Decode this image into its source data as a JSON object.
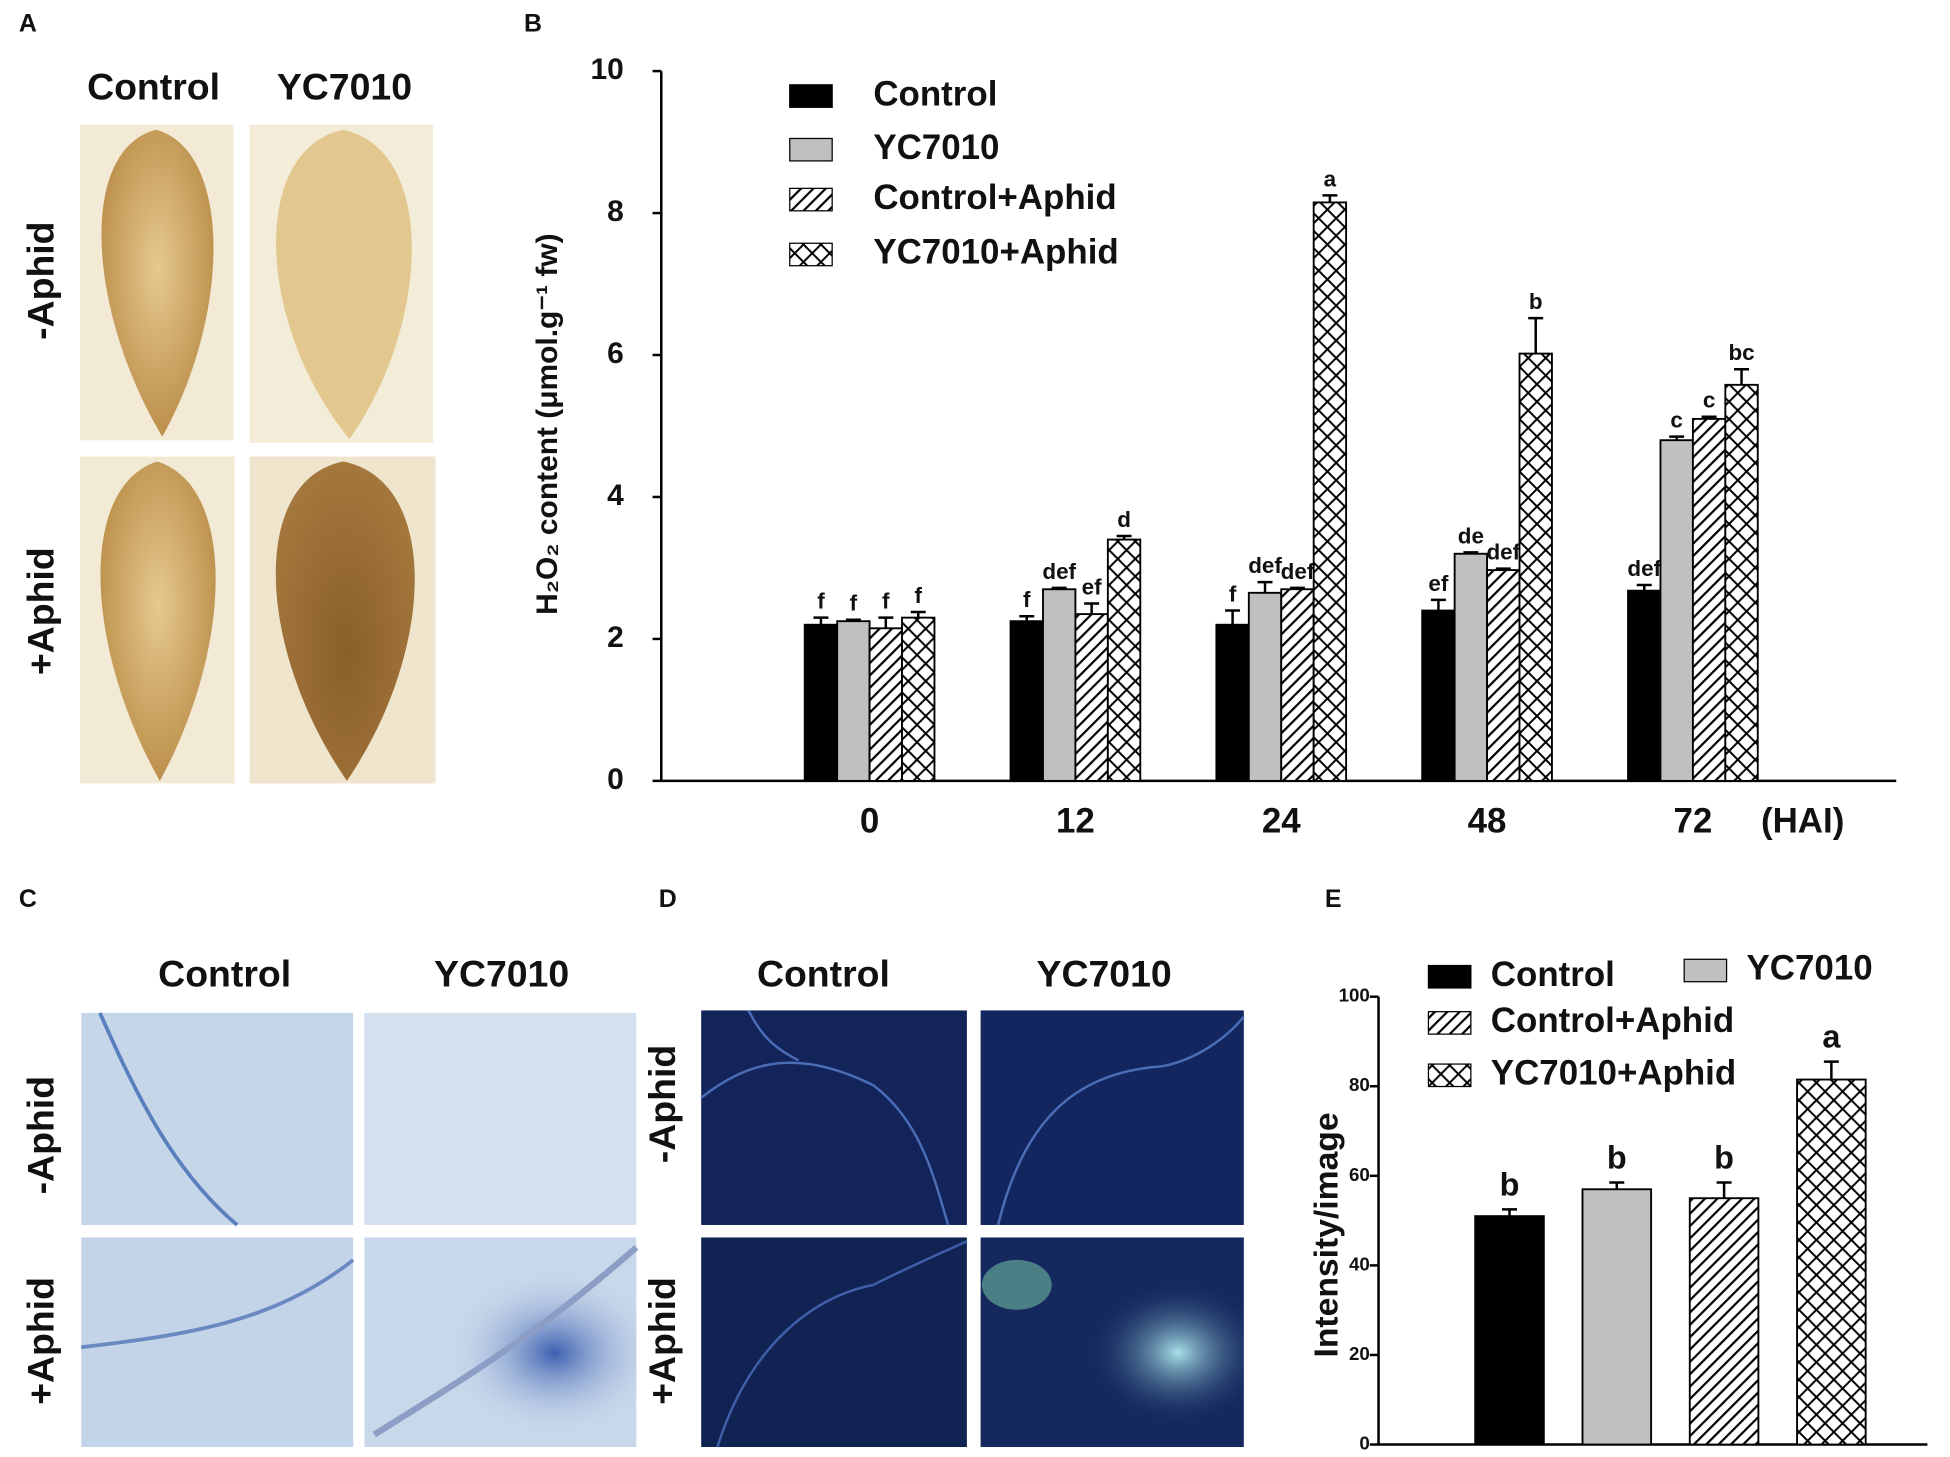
{
  "panels": {
    "A": {
      "label": "A",
      "columns": [
        "Control",
        "YC7010"
      ],
      "rows": [
        "-Aphid",
        "+Aphid"
      ]
    },
    "C": {
      "label": "C",
      "columns": [
        "Control",
        "YC7010"
      ],
      "rows": [
        "-Aphid",
        "+Aphid"
      ]
    },
    "D": {
      "label": "D",
      "columns": [
        "Control",
        "YC7010"
      ],
      "rows": [
        "-Aphid",
        "+Aphid"
      ]
    }
  },
  "chart_data": [
    {
      "type": "bar",
      "panel_label": "B",
      "ylabel": "H₂O₂ content (μmol.g⁻¹ fw)",
      "xlabel": "(HAI)",
      "categories": [
        "0",
        "12",
        "24",
        "48",
        "72"
      ],
      "ylim": [
        0,
        10
      ],
      "yticks": [
        0,
        2,
        4,
        6,
        8,
        10
      ],
      "legend": "upper left",
      "series": [
        {
          "name": "Control",
          "color": "#000000",
          "values": [
            2.2,
            2.25,
            2.2,
            2.4,
            2.68
          ],
          "errors": [
            0.1,
            0.07,
            0.2,
            0.15,
            0.08
          ],
          "significance": [
            "f",
            "f",
            "f",
            "ef",
            "def"
          ]
        },
        {
          "name": "YC7010",
          "color": "#c0c0c0",
          "values": [
            2.25,
            2.7,
            2.65,
            3.2,
            4.8
          ],
          "errors": [
            0.02,
            0.02,
            0.15,
            0.02,
            0.05
          ],
          "significance": [
            "f",
            "def",
            "def",
            "de",
            "c"
          ]
        },
        {
          "name": "Control+Aphid",
          "color": "#000000",
          "hatch": "diagonal",
          "values": [
            2.15,
            2.35,
            2.7,
            2.97,
            5.1
          ],
          "errors": [
            0.15,
            0.15,
            0.02,
            0.02,
            0.03
          ],
          "significance": [
            "f",
            "ef",
            "def",
            "def",
            "c"
          ]
        },
        {
          "name": "YC7010+Aphid",
          "color": "#000000",
          "hatch": "cross",
          "values": [
            2.3,
            3.4,
            8.15,
            6.02,
            5.58
          ],
          "errors": [
            0.08,
            0.05,
            0.1,
            0.5,
            0.22
          ],
          "significance": [
            "f",
            "d",
            "a",
            "b",
            "bc"
          ]
        }
      ]
    },
    {
      "type": "bar",
      "panel_label": "E",
      "ylabel": "Intensity/image",
      "categories": [
        null
      ],
      "ylim": [
        0,
        100
      ],
      "yticks": [
        0,
        20,
        40,
        60,
        80,
        100
      ],
      "legend": "upper left",
      "series": [
        {
          "name": "Control",
          "color": "#000000",
          "values": [
            51
          ],
          "errors": [
            1.5
          ],
          "significance": [
            "b"
          ]
        },
        {
          "name": "YC7010",
          "color": "#c0c0c0",
          "values": [
            57
          ],
          "errors": [
            1.5
          ],
          "significance": [
            "b"
          ]
        },
        {
          "name": "Control+Aphid",
          "color": "#000000",
          "hatch": "diagonal",
          "values": [
            55
          ],
          "errors": [
            3.5
          ],
          "significance": [
            "b"
          ]
        },
        {
          "name": "YC7010+Aphid",
          "color": "#000000",
          "hatch": "cross",
          "values": [
            81.5
          ],
          "errors": [
            4
          ],
          "significance": [
            "a"
          ]
        }
      ]
    }
  ]
}
